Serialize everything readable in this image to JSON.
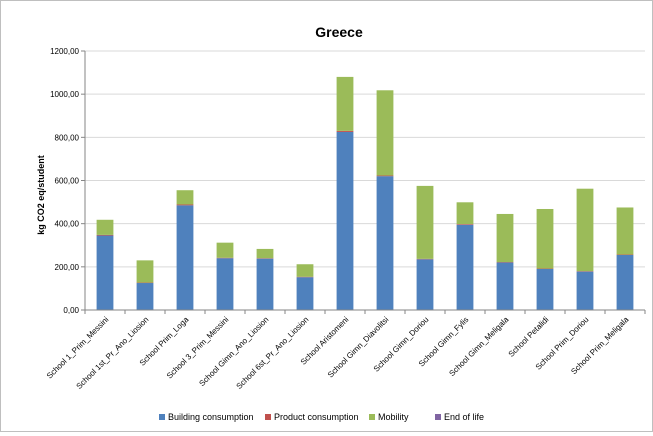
{
  "chart_data": {
    "type": "bar",
    "stacked": true,
    "title": "Greece",
    "xlabel": "",
    "ylabel": "kg CO2 eq/student",
    "ylim": [
      0,
      1200
    ],
    "yticks": [
      "0,00",
      "200,00",
      "400,00",
      "600,00",
      "800,00",
      "1000,00",
      "1200,00"
    ],
    "grid": true,
    "legend_position": "bottom",
    "categories": [
      "School 1_Prim_Messini",
      "School 1st_Pr_Ano_Liosion",
      "School Prim_Loga",
      "School 3_Prim_Messini",
      "School Gimn_Ano_Liosion",
      "School 6st_Pr_Ano_Liosion",
      "School Aristomeni",
      "School Gimn_Diavolitsi",
      "School Gimn_Doriou",
      "School Gimn_Fylis",
      "School Gimn_Meligala",
      "School Petalidi",
      "School Prim_Doriou",
      "School Prim_Meligala"
    ],
    "series": [
      {
        "name": "Building consumption",
        "color": "#4F81BD",
        "values": [
          345,
          125,
          485,
          240,
          238,
          152,
          825,
          620,
          235,
          395,
          220,
          190,
          178,
          255
        ]
      },
      {
        "name": "Product consumption",
        "color": "#C0504D",
        "values": [
          3,
          2,
          4,
          2,
          2,
          2,
          5,
          3,
          2,
          3,
          2,
          2,
          2,
          2
        ]
      },
      {
        "name": "Mobility",
        "color": "#9BBB59",
        "values": [
          70,
          103,
          66,
          70,
          43,
          58,
          250,
          395,
          338,
          101,
          223,
          276,
          382,
          218
        ]
      },
      {
        "name": "End of life",
        "color": "#8064A2",
        "values": [
          0,
          0,
          0,
          0,
          0,
          0,
          0,
          0,
          0,
          0,
          0,
          0,
          0,
          0
        ]
      }
    ]
  }
}
